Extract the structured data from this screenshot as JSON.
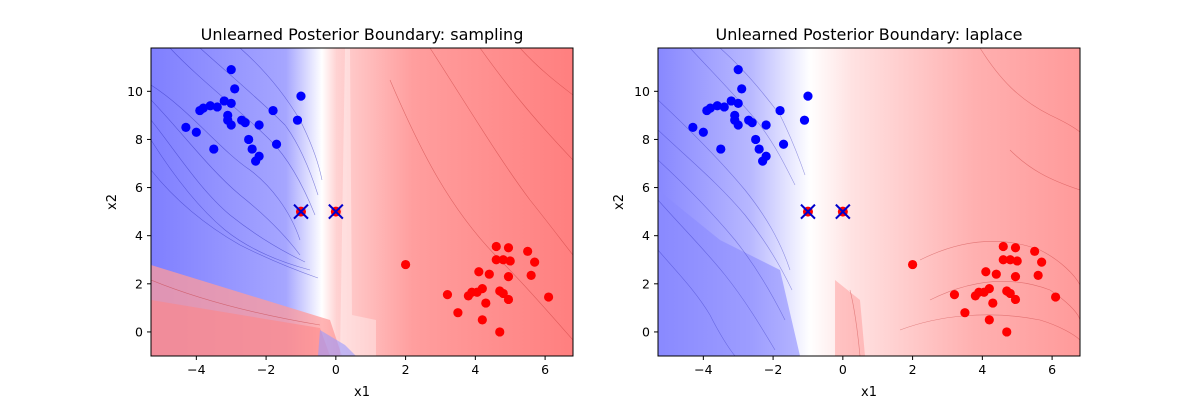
{
  "colors": {
    "class_neg": "#0000ff",
    "class_pos": "#ff0000",
    "field_neg": "#7f7fff",
    "field_pos": "#ff7f7f",
    "query_marker": "#0000cc"
  },
  "chart_data": [
    {
      "type": "scatter",
      "title": "Unlearned Posterior Boundary: sampling",
      "xlabel": "x1",
      "ylabel": "x2",
      "xlim": [
        -5.3,
        6.8
      ],
      "ylim": [
        -1.0,
        11.8
      ],
      "xticks": [
        -4,
        -2,
        0,
        2,
        4,
        6
      ],
      "yticks": [
        0,
        2,
        4,
        6,
        8,
        10
      ],
      "background": "filled posterior contour (blue left, red right)",
      "series": [
        {
          "color": "blue",
          "points": [
            [
              -3.0,
              10.9
            ],
            [
              -1.0,
              9.8
            ],
            [
              -2.9,
              10.1
            ],
            [
              -3.6,
              9.4
            ],
            [
              -3.9,
              9.2
            ],
            [
              -3.2,
              9.6
            ],
            [
              -3.0,
              9.5
            ],
            [
              -1.8,
              9.2
            ],
            [
              -3.4,
              9.35
            ],
            [
              -3.8,
              9.3
            ],
            [
              -1.1,
              8.8
            ],
            [
              -3.1,
              9.0
            ],
            [
              -3.0,
              8.6
            ],
            [
              -2.7,
              8.8
            ],
            [
              -2.6,
              8.7
            ],
            [
              -3.1,
              8.8
            ],
            [
              -2.2,
              8.6
            ],
            [
              -4.3,
              8.5
            ],
            [
              -4.0,
              8.3
            ],
            [
              -2.5,
              8.0
            ],
            [
              -1.7,
              7.8
            ],
            [
              -3.5,
              7.6
            ],
            [
              -2.4,
              7.6
            ],
            [
              -2.2,
              7.3
            ],
            [
              -2.3,
              7.1
            ]
          ]
        },
        {
          "color": "red",
          "points": [
            [
              4.6,
              3.55
            ],
            [
              4.95,
              3.5
            ],
            [
              5.5,
              3.35
            ],
            [
              4.6,
              3.0
            ],
            [
              4.8,
              3.0
            ],
            [
              5.0,
              2.95
            ],
            [
              5.7,
              2.9
            ],
            [
              2.0,
              2.8
            ],
            [
              4.1,
              2.5
            ],
            [
              4.4,
              2.4
            ],
            [
              4.95,
              2.3
            ],
            [
              5.6,
              2.35
            ],
            [
              4.2,
              1.8
            ],
            [
              4.7,
              1.7
            ],
            [
              4.8,
              1.6
            ],
            [
              3.2,
              1.55
            ],
            [
              3.9,
              1.65
            ],
            [
              4.05,
              1.65
            ],
            [
              3.8,
              1.5
            ],
            [
              4.95,
              1.35
            ],
            [
              6.1,
              1.45
            ],
            [
              4.3,
              1.2
            ],
            [
              3.5,
              0.8
            ],
            [
              4.2,
              0.5
            ],
            [
              4.7,
              0.0
            ]
          ]
        },
        {
          "label": "query points",
          "marker": "x",
          "points": [
            [
              -1.0,
              5.0
            ],
            [
              0.0,
              5.0
            ]
          ]
        }
      ]
    },
    {
      "type": "scatter",
      "title": "Unlearned Posterior Boundary: laplace",
      "xlabel": "x1",
      "ylabel": "x2",
      "xlim": [
        -5.3,
        6.8
      ],
      "ylim": [
        -1.0,
        11.8
      ],
      "xticks": [
        -4,
        -2,
        0,
        2,
        4,
        6
      ],
      "yticks": [
        0,
        2,
        4,
        6,
        8,
        10
      ],
      "background": "filled posterior contour (blue left, red right)",
      "series": [
        {
          "color": "blue",
          "points": [
            [
              -3.0,
              10.9
            ],
            [
              -1.0,
              9.8
            ],
            [
              -2.9,
              10.1
            ],
            [
              -3.6,
              9.4
            ],
            [
              -3.9,
              9.2
            ],
            [
              -3.2,
              9.6
            ],
            [
              -3.0,
              9.5
            ],
            [
              -1.8,
              9.2
            ],
            [
              -3.4,
              9.35
            ],
            [
              -3.8,
              9.3
            ],
            [
              -1.1,
              8.8
            ],
            [
              -3.1,
              9.0
            ],
            [
              -3.0,
              8.6
            ],
            [
              -2.7,
              8.8
            ],
            [
              -2.6,
              8.7
            ],
            [
              -3.1,
              8.8
            ],
            [
              -2.2,
              8.6
            ],
            [
              -4.3,
              8.5
            ],
            [
              -4.0,
              8.3
            ],
            [
              -2.5,
              8.0
            ],
            [
              -1.7,
              7.8
            ],
            [
              -3.5,
              7.6
            ],
            [
              -2.4,
              7.6
            ],
            [
              -2.2,
              7.3
            ],
            [
              -2.3,
              7.1
            ]
          ]
        },
        {
          "color": "red",
          "points": [
            [
              4.6,
              3.55
            ],
            [
              4.95,
              3.5
            ],
            [
              5.5,
              3.35
            ],
            [
              4.6,
              3.0
            ],
            [
              4.8,
              3.0
            ],
            [
              5.0,
              2.95
            ],
            [
              5.7,
              2.9
            ],
            [
              2.0,
              2.8
            ],
            [
              4.1,
              2.5
            ],
            [
              4.4,
              2.4
            ],
            [
              4.95,
              2.3
            ],
            [
              5.6,
              2.35
            ],
            [
              4.2,
              1.8
            ],
            [
              4.7,
              1.7
            ],
            [
              4.8,
              1.6
            ],
            [
              3.2,
              1.55
            ],
            [
              3.9,
              1.65
            ],
            [
              4.05,
              1.65
            ],
            [
              3.8,
              1.5
            ],
            [
              4.95,
              1.35
            ],
            [
              6.1,
              1.45
            ],
            [
              4.3,
              1.2
            ],
            [
              3.5,
              0.8
            ],
            [
              4.2,
              0.5
            ],
            [
              4.7,
              0.0
            ]
          ]
        },
        {
          "label": "query points",
          "marker": "x",
          "points": [
            [
              -1.0,
              5.0
            ],
            [
              0.0,
              5.0
            ]
          ]
        }
      ]
    }
  ]
}
